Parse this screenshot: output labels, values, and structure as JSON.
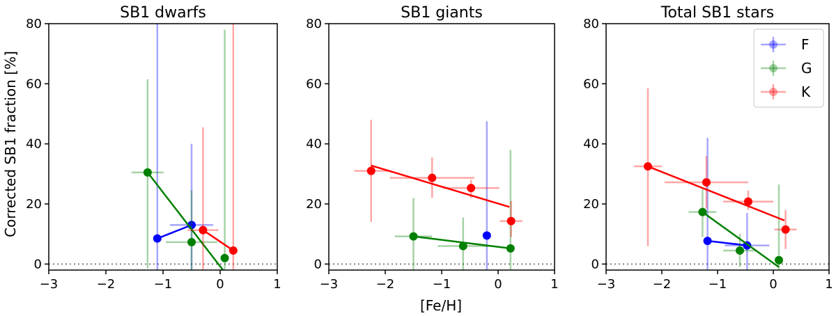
{
  "figure": {
    "ylabel": "Corrected SB1 fraction [%]",
    "xlabel": "[Fe/H]"
  },
  "legend": {
    "entries": [
      {
        "label": "F",
        "color": "#0000ff"
      },
      {
        "label": "G",
        "color": "#008000"
      },
      {
        "label": "K",
        "color": "#ff0000"
      }
    ]
  },
  "chart_data": [
    {
      "type": "scatter",
      "title": "SB1 dwarfs",
      "xlim": [
        -3,
        1
      ],
      "ylim": [
        -2,
        80
      ],
      "xticks": [
        -3,
        -2,
        -1,
        0,
        1
      ],
      "yticks": [
        0,
        20,
        40,
        60,
        80
      ],
      "reference_line_y": 0,
      "series": [
        {
          "name": "F",
          "color": "#0000ff",
          "points": [
            {
              "x": -1.1,
              "y": 8.5,
              "xerr": 0.0,
              "ylo": -2,
              "yhi": 80
            },
            {
              "x": -0.5,
              "y": 13.0,
              "xerr": 0.38,
              "ylo": -2,
              "yhi": 40
            }
          ],
          "fit": [
            [
              -1.1,
              8.5
            ],
            [
              -0.5,
              13.0
            ]
          ]
        },
        {
          "name": "G",
          "color": "#008000",
          "points": [
            {
              "x": -1.27,
              "y": 30.5,
              "xerr": 0.28,
              "ylo": -1.5,
              "yhi": 61.5
            },
            {
              "x": -0.5,
              "y": 7.3,
              "xerr": 0.45,
              "ylo": -2,
              "yhi": 24.5
            },
            {
              "x": 0.08,
              "y": 2.0,
              "xerr": 0.0,
              "ylo": -2,
              "yhi": 78
            }
          ],
          "fit": [
            [
              -1.27,
              30.5
            ],
            [
              0.05,
              -2.0
            ]
          ]
        },
        {
          "name": "K",
          "color": "#ff0000",
          "points": [
            {
              "x": -0.3,
              "y": 11.3,
              "xerr": 0.27,
              "ylo": -2,
              "yhi": 45.5
            },
            {
              "x": 0.23,
              "y": 4.5,
              "xerr": 0.0,
              "ylo": -2,
              "yhi": 80
            }
          ],
          "fit": [
            [
              -0.3,
              11.3
            ],
            [
              0.23,
              4.5
            ]
          ]
        }
      ]
    },
    {
      "type": "scatter",
      "title": "SB1 giants",
      "xlim": [
        -3,
        1
      ],
      "ylim": [
        -2,
        80
      ],
      "xticks": [
        -3,
        -2,
        -1,
        0,
        1
      ],
      "yticks": [
        0,
        20,
        40,
        60,
        80
      ],
      "reference_line_y": 0,
      "series": [
        {
          "name": "F",
          "color": "#0000ff",
          "points": [
            {
              "x": -0.2,
              "y": 9.5,
              "xerr": 0.0,
              "ylo": -2,
              "yhi": 47.5
            }
          ],
          "fit": []
        },
        {
          "name": "G",
          "color": "#008000",
          "points": [
            {
              "x": -1.5,
              "y": 9.2,
              "xerr": 0.33,
              "ylo": -2,
              "yhi": 22
            },
            {
              "x": -0.62,
              "y": 6.0,
              "xerr": 0.45,
              "ylo": -2,
              "yhi": 15.5
            },
            {
              "x": 0.22,
              "y": 5.2,
              "xerr": 0.0,
              "ylo": -2,
              "yhi": 38
            }
          ],
          "fit": [
            [
              -1.5,
              9.2
            ],
            [
              0.22,
              5.2
            ]
          ]
        },
        {
          "name": "K",
          "color": "#ff0000",
          "points": [
            {
              "x": -2.25,
              "y": 31.0,
              "xerr": 0.3,
              "ylo": 14,
              "yhi": 48
            },
            {
              "x": -1.17,
              "y": 28.7,
              "xerr": 0.75,
              "ylo": 22,
              "yhi": 35.5
            },
            {
              "x": -0.48,
              "y": 25.3,
              "xerr": 0.5,
              "ylo": 22,
              "yhi": 28
            },
            {
              "x": 0.23,
              "y": 14.3,
              "xerr": 0.2,
              "ylo": 9,
              "yhi": 21
            }
          ],
          "fit": [
            [
              -2.25,
              32.8
            ],
            [
              0.2,
              19.0
            ]
          ]
        }
      ]
    },
    {
      "type": "scatter",
      "title": "Total SB1 stars",
      "xlim": [
        -3,
        1
      ],
      "ylim": [
        -2,
        80
      ],
      "xticks": [
        -3,
        -2,
        -1,
        0,
        1
      ],
      "yticks": [
        0,
        20,
        40,
        60,
        80
      ],
      "reference_line_y": 0,
      "legend_position": "top-right",
      "series": [
        {
          "name": "F",
          "color": "#0000ff",
          "points": [
            {
              "x": -1.18,
              "y": 7.7,
              "xerr": 0.0,
              "ylo": -2,
              "yhi": 42
            },
            {
              "x": -0.47,
              "y": 6.2,
              "xerr": 0.4,
              "ylo": -2,
              "yhi": 17
            }
          ],
          "fit": [
            [
              -1.18,
              7.7
            ],
            [
              -0.47,
              6.2
            ]
          ]
        },
        {
          "name": "G",
          "color": "#008000",
          "points": [
            {
              "x": -1.27,
              "y": 17.3,
              "xerr": 0.25,
              "ylo": 9,
              "yhi": 25
            },
            {
              "x": -0.6,
              "y": 4.5,
              "xerr": 0.3,
              "ylo": -1,
              "yhi": 10
            },
            {
              "x": 0.1,
              "y": 1.3,
              "xerr": 0.0,
              "ylo": -2,
              "yhi": 26.5
            }
          ],
          "fit": [
            [
              -1.27,
              17.3
            ],
            [
              0.1,
              -1.0
            ]
          ]
        },
        {
          "name": "K",
          "color": "#ff0000",
          "points": [
            {
              "x": -2.25,
              "y": 32.5,
              "xerr": 0.25,
              "ylo": 6,
              "yhi": 58.5
            },
            {
              "x": -1.2,
              "y": 27.2,
              "xerr": 0.75,
              "ylo": 18.5,
              "yhi": 36
            },
            {
              "x": -0.45,
              "y": 20.8,
              "xerr": 0.45,
              "ylo": 18,
              "yhi": 24.5
            },
            {
              "x": 0.22,
              "y": 11.5,
              "xerr": 0.2,
              "ylo": 5,
              "yhi": 18
            }
          ],
          "fit": [
            [
              -2.25,
              32.5
            ],
            [
              0.2,
              14.5
            ]
          ]
        }
      ]
    }
  ]
}
